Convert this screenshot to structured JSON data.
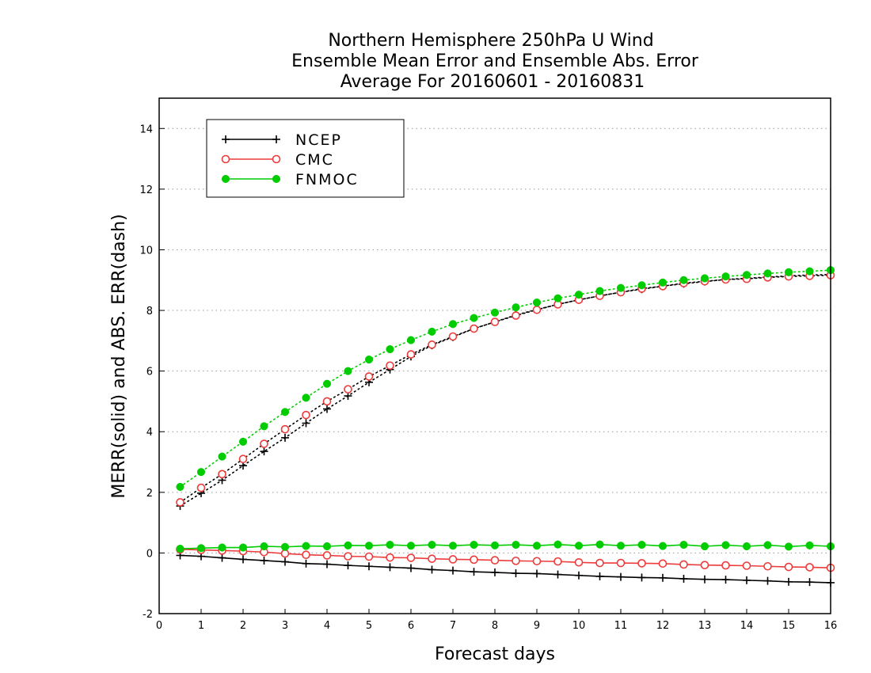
{
  "chart_data": {
    "type": "line",
    "title": [
      "Northern Hemisphere 250hPa U Wind",
      "Ensemble Mean Error and Ensemble Abs. Error",
      "Average For 20160601 - 20160831"
    ],
    "xlabel": "Forecast days",
    "ylabel": "MERR(solid) and ABS. ERR(dash)",
    "xlim": [
      0,
      16
    ],
    "ylim": [
      -2,
      15
    ],
    "xticks": [
      "0",
      "1",
      "2",
      "3",
      "4",
      "5",
      "6",
      "7",
      "8",
      "9",
      "10",
      "11",
      "12",
      "13",
      "14",
      "15",
      "16"
    ],
    "yticks": [
      "-2",
      "0",
      "2",
      "4",
      "6",
      "8",
      "10",
      "12",
      "14"
    ],
    "grid": "horizontal dotted",
    "legend_position": "top-left",
    "x": [
      0.5,
      1,
      1.5,
      2,
      2.5,
      3,
      3.5,
      4,
      4.5,
      5,
      5.5,
      6,
      6.5,
      7,
      7.5,
      8,
      8.5,
      9,
      9.5,
      10,
      10.5,
      11,
      11.5,
      12,
      12.5,
      13,
      13.5,
      14,
      14.5,
      15,
      15.5,
      16
    ],
    "series": [
      {
        "name": "NCEP",
        "color": "#000000",
        "marker": "plus",
        "merr": [
          -0.08,
          -0.11,
          -0.16,
          -0.21,
          -0.25,
          -0.29,
          -0.35,
          -0.37,
          -0.41,
          -0.44,
          -0.47,
          -0.5,
          -0.55,
          -0.58,
          -0.62,
          -0.64,
          -0.67,
          -0.68,
          -0.71,
          -0.74,
          -0.77,
          -0.79,
          -0.81,
          -0.82,
          -0.85,
          -0.87,
          -0.88,
          -0.9,
          -0.92,
          -0.95,
          -0.96,
          -0.98
        ],
        "abs_err": [
          1.55,
          1.97,
          2.4,
          2.88,
          3.35,
          3.8,
          4.28,
          4.75,
          5.18,
          5.63,
          6.05,
          6.48,
          6.85,
          7.12,
          7.4,
          7.62,
          7.85,
          8.03,
          8.2,
          8.35,
          8.48,
          8.6,
          8.7,
          8.8,
          8.88,
          8.95,
          9.02,
          9.06,
          9.1,
          9.14,
          9.17,
          9.18
        ]
      },
      {
        "name": "CMC",
        "color": "#ee3b3b",
        "marker": "open-circle",
        "merr": [
          0.12,
          0.1,
          0.08,
          0.06,
          0.03,
          -0.02,
          -0.06,
          -0.08,
          -0.11,
          -0.12,
          -0.15,
          -0.16,
          -0.19,
          -0.21,
          -0.22,
          -0.24,
          -0.26,
          -0.27,
          -0.28,
          -0.31,
          -0.33,
          -0.33,
          -0.34,
          -0.35,
          -0.38,
          -0.4,
          -0.41,
          -0.42,
          -0.44,
          -0.46,
          -0.47,
          -0.49
        ],
        "abs_err": [
          1.67,
          2.15,
          2.6,
          3.1,
          3.6,
          4.08,
          4.55,
          5.0,
          5.4,
          5.82,
          6.18,
          6.55,
          6.87,
          7.14,
          7.4,
          7.62,
          7.83,
          8.02,
          8.2,
          8.35,
          8.48,
          8.6,
          8.72,
          8.8,
          8.9,
          8.96,
          9.02,
          9.04,
          9.09,
          9.12,
          9.14,
          9.16
        ]
      },
      {
        "name": "FNMOC",
        "color": "#00cc00",
        "marker": "filled-circle",
        "merr": [
          0.14,
          0.16,
          0.18,
          0.18,
          0.22,
          0.2,
          0.23,
          0.22,
          0.25,
          0.24,
          0.27,
          0.24,
          0.27,
          0.24,
          0.27,
          0.25,
          0.27,
          0.24,
          0.28,
          0.24,
          0.28,
          0.24,
          0.27,
          0.23,
          0.27,
          0.22,
          0.26,
          0.22,
          0.26,
          0.21,
          0.25,
          0.22
        ],
        "abs_err": [
          2.18,
          2.67,
          3.18,
          3.67,
          4.18,
          4.65,
          5.12,
          5.58,
          6.0,
          6.38,
          6.72,
          7.02,
          7.3,
          7.55,
          7.75,
          7.93,
          8.1,
          8.26,
          8.4,
          8.52,
          8.64,
          8.74,
          8.83,
          8.92,
          9.0,
          9.06,
          9.12,
          9.17,
          9.22,
          9.26,
          9.29,
          9.33
        ]
      }
    ]
  }
}
